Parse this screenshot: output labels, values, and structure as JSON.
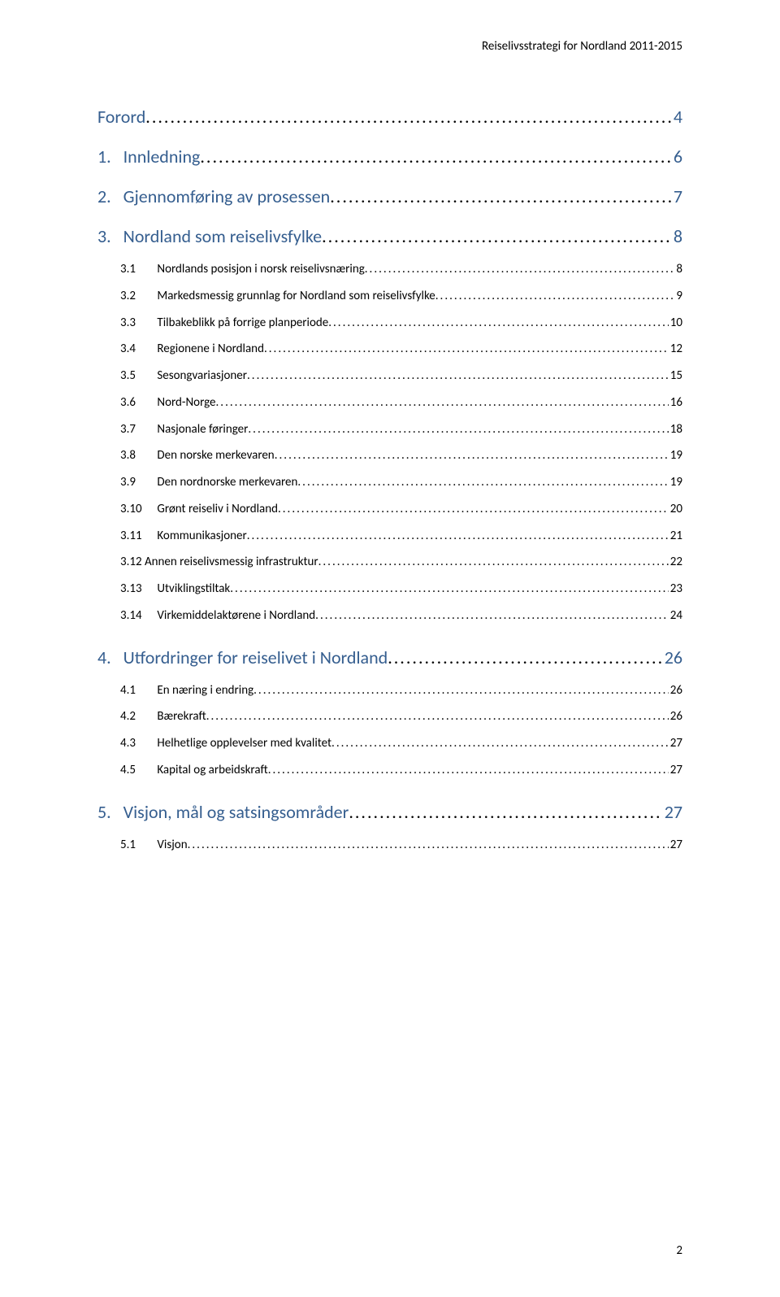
{
  "header": "Reiselivsstrategi for Nordland 2011-2015",
  "footer_page": "2",
  "toc": [
    {
      "level": 1,
      "num": "",
      "title": "Forord",
      "page": "4"
    },
    {
      "level": 1,
      "num": "1.",
      "title": "Innledning",
      "page": "6"
    },
    {
      "level": 1,
      "num": "2.",
      "title": "Gjennomføring av prosessen",
      "page": "7"
    },
    {
      "level": 1,
      "num": "3.",
      "title": "Nordland som reiselivsfylke",
      "page": "8"
    },
    {
      "level": 2,
      "num": "3.1",
      "title": "Nordlands posisjon i norsk reiselivsnæring",
      "page": "8"
    },
    {
      "level": 2,
      "num": "3.2",
      "title": "Markedsmessig grunnlag for Nordland som reiselivsfylke",
      "page": "9"
    },
    {
      "level": 2,
      "num": "3.3",
      "title": "Tilbakeblikk på forrige planperiode",
      "page": "10"
    },
    {
      "level": 2,
      "num": "3.4",
      "title": "Regionene i Nordland",
      "page": "12"
    },
    {
      "level": 2,
      "num": "3.5",
      "title": "Sesongvariasjoner",
      "page": "15"
    },
    {
      "level": 2,
      "num": "3.6",
      "title": "Nord-Norge",
      "page": "16"
    },
    {
      "level": 2,
      "num": "3.7",
      "title": "Nasjonale føringer",
      "page": "18"
    },
    {
      "level": 2,
      "num": "3.8",
      "title": "Den norske merkevaren",
      "page": "19"
    },
    {
      "level": 2,
      "num": "3.9",
      "title": "Den nordnorske merkevaren",
      "page": "19"
    },
    {
      "level": 2,
      "num": "3.10",
      "title": "Grønt reiseliv i Nordland",
      "page": "20"
    },
    {
      "level": 2,
      "num": "3.11",
      "title": "Kommunikasjoner",
      "page": "21"
    },
    {
      "level": 2,
      "num": "3.12",
      "title": "Annen reiselivsmessig infrastruktur",
      "page": "22",
      "nonum_gap": true
    },
    {
      "level": 2,
      "num": "3.13",
      "title": "Utviklingstiltak",
      "page": "23"
    },
    {
      "level": 2,
      "num": "3.14",
      "title": "Virkemiddelaktørene i Nordland",
      "page": "24"
    },
    {
      "level": 1,
      "num": "4.",
      "title": "Utfordringer for reiselivet i Nordland",
      "page": "26"
    },
    {
      "level": 2,
      "num": "4.1",
      "title": "En næring i endring",
      "page": "26"
    },
    {
      "level": 2,
      "num": "4.2",
      "title": "Bærekraft",
      "page": "26"
    },
    {
      "level": 2,
      "num": "4.3",
      "title": "Helhetlige opplevelser med kvalitet",
      "page": "27"
    },
    {
      "level": 2,
      "num": "4.5",
      "title": "Kapital og arbeidskraft",
      "page": "27"
    },
    {
      "level": 1,
      "num": "5.",
      "title": "Visjon, mål og satsingsområder",
      "page": "27"
    },
    {
      "level": 2,
      "num": "5.1",
      "title": "Visjon",
      "page": "27"
    }
  ]
}
